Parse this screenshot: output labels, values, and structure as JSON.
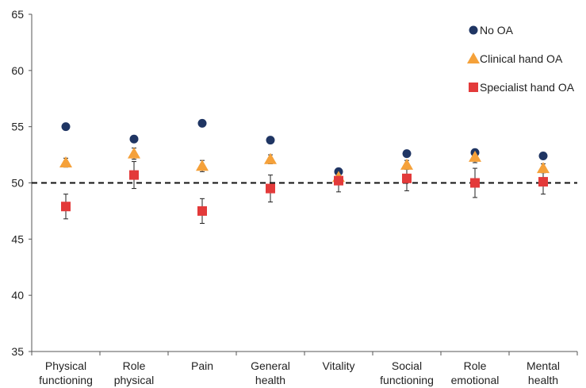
{
  "chart_data": {
    "type": "scatter",
    "title": "",
    "xlabel": "",
    "ylabel": "",
    "ylim": [
      35,
      65
    ],
    "yticks": [
      35,
      40,
      45,
      50,
      55,
      60,
      65
    ],
    "reference_line": 50,
    "legend_position": "top-right",
    "categories": [
      [
        "Physical",
        "functioning"
      ],
      [
        "Role",
        "physical"
      ],
      [
        "Pain"
      ],
      [
        "General",
        "health"
      ],
      [
        "Vitality"
      ],
      [
        "Social",
        "functioning"
      ],
      [
        "Role",
        "emotional"
      ],
      [
        "Mental",
        "health"
      ]
    ],
    "series": [
      {
        "name": "No OA",
        "marker": "circle",
        "color": "#1f3563",
        "values": [
          55.0,
          53.9,
          55.3,
          53.8,
          51.0,
          52.6,
          52.7,
          52.4
        ],
        "error": [
          0.1,
          0.1,
          0.1,
          0.1,
          0.1,
          0.1,
          0.1,
          0.1
        ]
      },
      {
        "name": "Clinical hand OA",
        "marker": "triangle",
        "color": "#f5a13a",
        "values": [
          51.8,
          52.6,
          51.5,
          52.1,
          50.5,
          51.6,
          52.3,
          51.3
        ],
        "error": [
          0.4,
          0.5,
          0.5,
          0.4,
          0.4,
          0.4,
          0.5,
          0.4
        ]
      },
      {
        "name": "Specialist hand OA",
        "marker": "square",
        "color": "#e33a3a",
        "values": [
          47.9,
          50.7,
          47.5,
          49.5,
          50.2,
          50.4,
          50.0,
          50.1
        ],
        "error": [
          1.1,
          1.2,
          1.1,
          1.2,
          1.0,
          1.1,
          1.3,
          1.1
        ]
      }
    ]
  }
}
